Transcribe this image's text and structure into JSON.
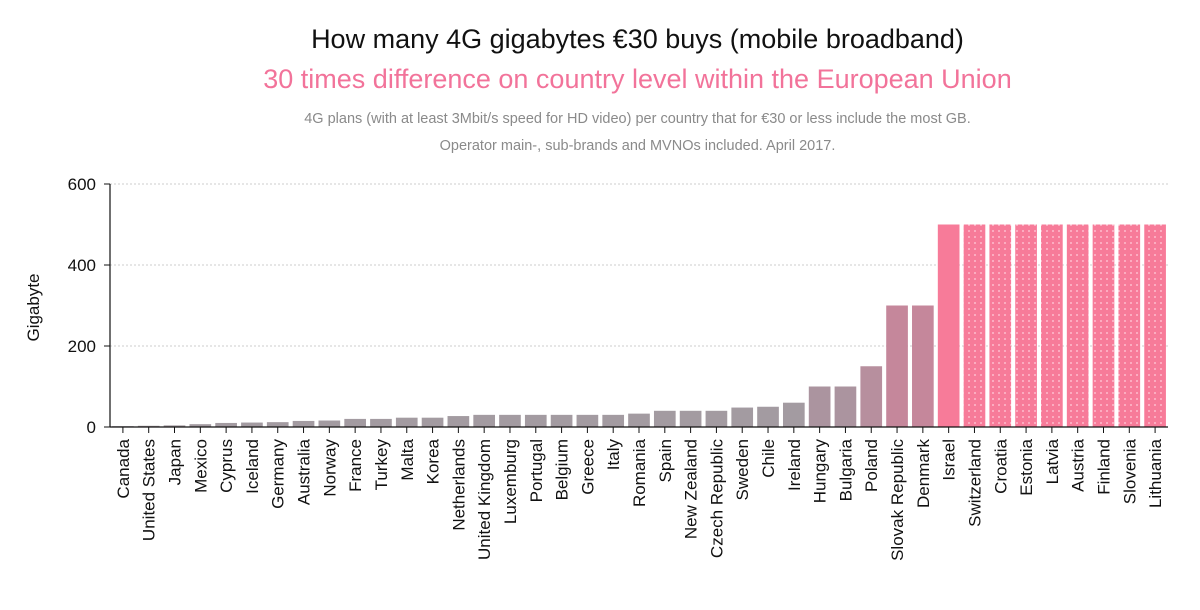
{
  "chart_data": {
    "type": "bar",
    "title": "How many 4G gigabytes €30 buys (mobile broadband)",
    "subtitle": "30 times difference on country level within the European Union",
    "notes": [
      "4G plans (with at least 3Mbit/s speed for HD video) per country that for €30 or less include the most GB.",
      "Operator main-, sub-brands and MVNOs included. April 2017."
    ],
    "xlabel": "",
    "ylabel": "Gigabyte",
    "ylim": [
      0,
      600
    ],
    "yticks": [
      0,
      200,
      400,
      600
    ],
    "grid": true,
    "categories": [
      "Canada",
      "United States",
      "Japan",
      "Mexico",
      "Cyprus",
      "Iceland",
      "Germany",
      "Australia",
      "Norway",
      "France",
      "Turkey",
      "Malta",
      "Korea",
      "Netherlands",
      "United Kingdom",
      "Luxemburg",
      "Portugal",
      "Belgium",
      "Greece",
      "Italy",
      "Romania",
      "Spain",
      "New Zealand",
      "Czech Republic",
      "Sweden",
      "Chile",
      "Ireland",
      "Hungary",
      "Bulgaria",
      "Poland",
      "Slovak Republic",
      "Denmark",
      "Israel",
      "Switzerland",
      "Croatia",
      "Estonia",
      "Latvia",
      "Austria",
      "Finland",
      "Slovenia",
      "Lithuania"
    ],
    "values": [
      2,
      3,
      4,
      7,
      10,
      11,
      12,
      15,
      16,
      20,
      20,
      23,
      23,
      27,
      30,
      30,
      30,
      30,
      30,
      30,
      33,
      40,
      40,
      40,
      48,
      50,
      60,
      100,
      100,
      150,
      300,
      300,
      500,
      500,
      500,
      500,
      500,
      500,
      500,
      500,
      500
    ],
    "colors": {
      "low": "#a39ba1",
      "mid": "#c5879b",
      "high": "#f77b99",
      "title": "#111111",
      "subtitle": "#f2739a",
      "note": "#8a8a8a",
      "grid": "#cccccc",
      "axis": "#111111",
      "dots": "#ffd0dc"
    },
    "dotted_from_index": 33
  }
}
